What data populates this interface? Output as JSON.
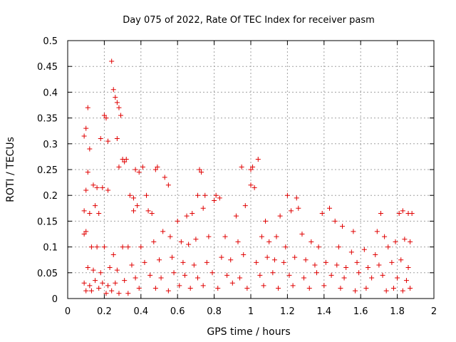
{
  "chart_data": {
    "type": "scatter",
    "title": "Day 075 of 2022, Rate Of TEC Index for receiver pasm",
    "xlabel": "GPS time / hours",
    "ylabel": "ROTI / TECUs",
    "xlim": [
      0,
      2
    ],
    "ylim": [
      0,
      0.5
    ],
    "xticks": [
      "0",
      "0.2",
      "0.4",
      "0.6",
      "0.8",
      "1",
      "1.2",
      "1.4",
      "1.6",
      "1.8",
      "2"
    ],
    "yticks": [
      "0",
      "0.05",
      "0.1",
      "0.15",
      "0.2",
      "0.25",
      "0.3",
      "0.35",
      "0.4",
      "0.45",
      "0.5"
    ],
    "grid": true,
    "marker": "+",
    "color": "#e00000",
    "series": [
      {
        "name": "ROTI",
        "points": [
          [
            0.24,
            0.46
          ],
          [
            0.25,
            0.405
          ],
          [
            0.26,
            0.39
          ],
          [
            0.27,
            0.38
          ],
          [
            0.28,
            0.37
          ],
          [
            0.11,
            0.37
          ],
          [
            0.2,
            0.355
          ],
          [
            0.21,
            0.35
          ],
          [
            0.29,
            0.355
          ],
          [
            0.1,
            0.33
          ],
          [
            0.09,
            0.315
          ],
          [
            0.18,
            0.31
          ],
          [
            0.22,
            0.305
          ],
          [
            0.27,
            0.31
          ],
          [
            0.12,
            0.29
          ],
          [
            0.3,
            0.27
          ],
          [
            0.31,
            0.265
          ],
          [
            0.32,
            0.27
          ],
          [
            0.28,
            0.255
          ],
          [
            0.37,
            0.25
          ],
          [
            0.39,
            0.245
          ],
          [
            0.41,
            0.255
          ],
          [
            0.48,
            0.25
          ],
          [
            0.49,
            0.255
          ],
          [
            0.72,
            0.25
          ],
          [
            0.73,
            0.245
          ],
          [
            0.95,
            0.255
          ],
          [
            1.0,
            0.25
          ],
          [
            1.01,
            0.255
          ],
          [
            1.04,
            0.27
          ],
          [
            0.11,
            0.245
          ],
          [
            0.1,
            0.21
          ],
          [
            0.14,
            0.22
          ],
          [
            0.16,
            0.215
          ],
          [
            0.19,
            0.215
          ],
          [
            0.22,
            0.21
          ],
          [
            0.34,
            0.2
          ],
          [
            0.36,
            0.195
          ],
          [
            0.43,
            0.2
          ],
          [
            0.53,
            0.235
          ],
          [
            0.55,
            0.22
          ],
          [
            0.71,
            0.2
          ],
          [
            0.75,
            0.2
          ],
          [
            0.81,
            0.2
          ],
          [
            0.83,
            0.195
          ],
          [
            1.0,
            0.22
          ],
          [
            1.02,
            0.215
          ],
          [
            1.2,
            0.2
          ],
          [
            1.25,
            0.195
          ],
          [
            1.71,
            0.165
          ],
          [
            1.81,
            0.165
          ],
          [
            1.83,
            0.17
          ],
          [
            1.86,
            0.165
          ],
          [
            1.88,
            0.165
          ],
          [
            0.09,
            0.17
          ],
          [
            0.12,
            0.165
          ],
          [
            0.15,
            0.18
          ],
          [
            0.17,
            0.165
          ],
          [
            0.36,
            0.17
          ],
          [
            0.38,
            0.18
          ],
          [
            0.44,
            0.17
          ],
          [
            0.46,
            0.165
          ],
          [
            0.6,
            0.15
          ],
          [
            0.65,
            0.16
          ],
          [
            0.68,
            0.165
          ],
          [
            0.74,
            0.175
          ],
          [
            0.8,
            0.19
          ],
          [
            0.92,
            0.16
          ],
          [
            0.97,
            0.18
          ],
          [
            1.08,
            0.15
          ],
          [
            1.16,
            0.16
          ],
          [
            1.22,
            0.17
          ],
          [
            1.26,
            0.175
          ],
          [
            1.39,
            0.165
          ],
          [
            1.43,
            0.175
          ],
          [
            1.46,
            0.15
          ],
          [
            1.5,
            0.14
          ],
          [
            1.56,
            0.13
          ],
          [
            1.69,
            0.13
          ],
          [
            1.73,
            0.12
          ],
          [
            0.09,
            0.125
          ],
          [
            0.1,
            0.13
          ],
          [
            0.13,
            0.1
          ],
          [
            0.16,
            0.1
          ],
          [
            0.2,
            0.1
          ],
          [
            0.25,
            0.085
          ],
          [
            0.3,
            0.1
          ],
          [
            0.33,
            0.1
          ],
          [
            0.4,
            0.1
          ],
          [
            0.47,
            0.11
          ],
          [
            0.52,
            0.13
          ],
          [
            0.56,
            0.12
          ],
          [
            0.62,
            0.11
          ],
          [
            0.66,
            0.105
          ],
          [
            0.7,
            0.115
          ],
          [
            0.77,
            0.12
          ],
          [
            0.86,
            0.12
          ],
          [
            0.93,
            0.11
          ],
          [
            1.06,
            0.12
          ],
          [
            1.1,
            0.11
          ],
          [
            1.14,
            0.12
          ],
          [
            1.19,
            0.1
          ],
          [
            1.28,
            0.125
          ],
          [
            1.33,
            0.11
          ],
          [
            1.37,
            0.1
          ],
          [
            1.48,
            0.1
          ],
          [
            1.55,
            0.09
          ],
          [
            1.62,
            0.095
          ],
          [
            1.68,
            0.085
          ],
          [
            1.75,
            0.1
          ],
          [
            1.79,
            0.11
          ],
          [
            1.84,
            0.115
          ],
          [
            1.87,
            0.11
          ],
          [
            0.11,
            0.06
          ],
          [
            0.14,
            0.055
          ],
          [
            0.18,
            0.05
          ],
          [
            0.23,
            0.06
          ],
          [
            0.27,
            0.055
          ],
          [
            0.35,
            0.065
          ],
          [
            0.42,
            0.07
          ],
          [
            0.5,
            0.075
          ],
          [
            0.57,
            0.08
          ],
          [
            0.63,
            0.07
          ],
          [
            0.69,
            0.065
          ],
          [
            0.76,
            0.07
          ],
          [
            0.84,
            0.08
          ],
          [
            0.89,
            0.075
          ],
          [
            0.96,
            0.085
          ],
          [
            1.03,
            0.07
          ],
          [
            1.09,
            0.08
          ],
          [
            1.13,
            0.075
          ],
          [
            1.18,
            0.07
          ],
          [
            1.24,
            0.08
          ],
          [
            1.3,
            0.075
          ],
          [
            1.35,
            0.065
          ],
          [
            1.41,
            0.07
          ],
          [
            1.47,
            0.065
          ],
          [
            1.52,
            0.06
          ],
          [
            1.58,
            0.07
          ],
          [
            1.64,
            0.06
          ],
          [
            1.7,
            0.065
          ],
          [
            1.77,
            0.07
          ],
          [
            1.82,
            0.075
          ],
          [
            1.86,
            0.06
          ],
          [
            0.09,
            0.03
          ],
          [
            0.12,
            0.025
          ],
          [
            0.15,
            0.035
          ],
          [
            0.19,
            0.03
          ],
          [
            0.22,
            0.025
          ],
          [
            0.26,
            0.03
          ],
          [
            0.31,
            0.035
          ],
          [
            0.37,
            0.04
          ],
          [
            0.45,
            0.045
          ],
          [
            0.51,
            0.04
          ],
          [
            0.58,
            0.05
          ],
          [
            0.64,
            0.045
          ],
          [
            0.71,
            0.04
          ],
          [
            0.79,
            0.05
          ],
          [
            0.87,
            0.045
          ],
          [
            0.94,
            0.04
          ],
          [
            1.05,
            0.045
          ],
          [
            1.12,
            0.05
          ],
          [
            1.21,
            0.045
          ],
          [
            1.29,
            0.04
          ],
          [
            1.36,
            0.05
          ],
          [
            1.44,
            0.045
          ],
          [
            1.51,
            0.04
          ],
          [
            1.59,
            0.05
          ],
          [
            1.66,
            0.04
          ],
          [
            1.72,
            0.045
          ],
          [
            1.8,
            0.04
          ],
          [
            1.85,
            0.035
          ],
          [
            0.1,
            0.015
          ],
          [
            0.13,
            0.015
          ],
          [
            0.17,
            0.02
          ],
          [
            0.21,
            0.01
          ],
          [
            0.24,
            0.015
          ],
          [
            0.28,
            0.01
          ],
          [
            0.33,
            0.01
          ],
          [
            0.39,
            0.02
          ],
          [
            0.48,
            0.02
          ],
          [
            0.55,
            0.015
          ],
          [
            0.61,
            0.025
          ],
          [
            0.67,
            0.02
          ],
          [
            0.74,
            0.025
          ],
          [
            0.82,
            0.02
          ],
          [
            0.9,
            0.03
          ],
          [
            0.98,
            0.02
          ],
          [
            1.07,
            0.025
          ],
          [
            1.15,
            0.02
          ],
          [
            1.23,
            0.025
          ],
          [
            1.32,
            0.02
          ],
          [
            1.4,
            0.025
          ],
          [
            1.49,
            0.02
          ],
          [
            1.57,
            0.015
          ],
          [
            1.63,
            0.02
          ],
          [
            1.74,
            0.015
          ],
          [
            1.78,
            0.02
          ],
          [
            1.83,
            0.015
          ],
          [
            1.87,
            0.02
          ]
        ]
      }
    ]
  }
}
